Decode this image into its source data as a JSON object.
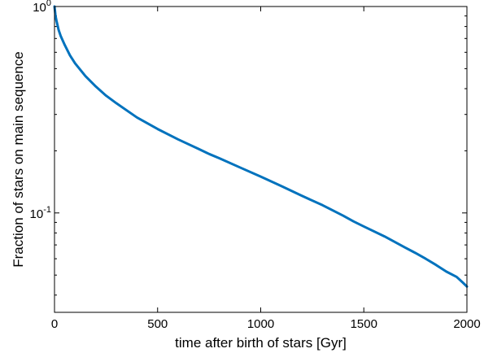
{
  "chart_data": {
    "type": "line",
    "title": "",
    "xlabel": "time after birth of stars  [Gyr]",
    "ylabel": "Fraction of stars on main sequence",
    "xlim": [
      0,
      2000
    ],
    "ylim": [
      0.033,
      1
    ],
    "yscale": "log",
    "grid": false,
    "x_ticks": [
      {
        "value": 0,
        "label": "0"
      },
      {
        "value": 500,
        "label": "500"
      },
      {
        "value": 1000,
        "label": "1000"
      },
      {
        "value": 1500,
        "label": "1500"
      },
      {
        "value": 2000,
        "label": "2000"
      }
    ],
    "y_ticks": [
      {
        "value": 1,
        "base": "10",
        "exp": "0"
      },
      {
        "value": 0.1,
        "base": "10",
        "exp": "-1"
      }
    ],
    "series": [
      {
        "color": "#0072bd",
        "x": [
          0,
          2,
          5,
          10,
          20,
          30,
          50,
          75,
          100,
          150,
          200,
          250,
          300,
          400,
          500,
          600,
          700,
          750,
          800,
          900,
          1000,
          1100,
          1200,
          1300,
          1400,
          1450,
          1500,
          1600,
          1700,
          1750,
          1800,
          1850,
          1900,
          1950,
          1980,
          2000
        ],
        "y": [
          1.0,
          0.96,
          0.9,
          0.85,
          0.77,
          0.72,
          0.65,
          0.58,
          0.53,
          0.46,
          0.41,
          0.37,
          0.34,
          0.29,
          0.255,
          0.227,
          0.204,
          0.193,
          0.184,
          0.166,
          0.15,
          0.135,
          0.121,
          0.109,
          0.097,
          0.091,
          0.086,
          0.077,
          0.068,
          0.064,
          0.06,
          0.056,
          0.052,
          0.049,
          0.046,
          0.044
        ]
      }
    ]
  }
}
